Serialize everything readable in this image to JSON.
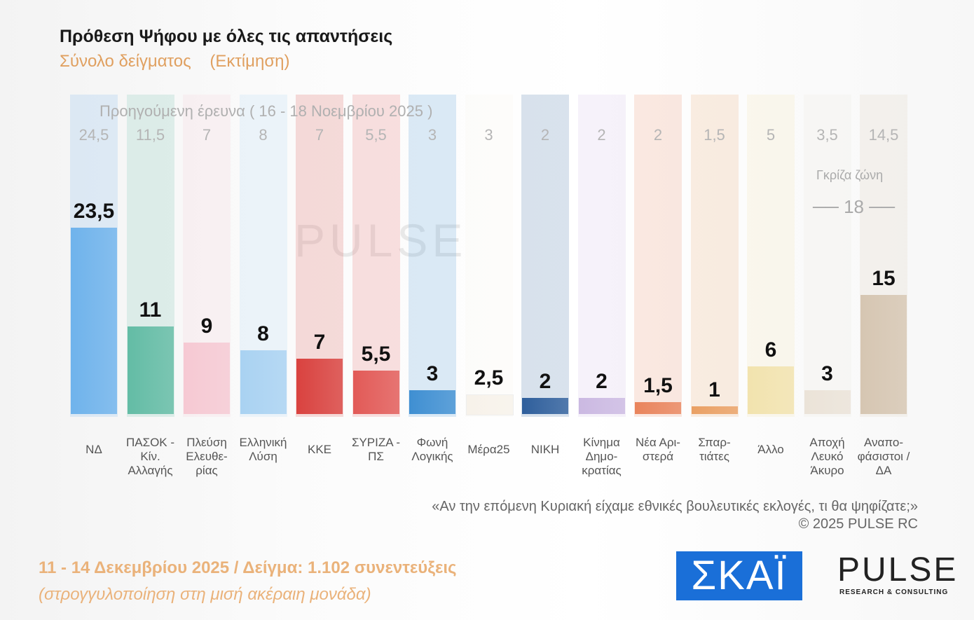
{
  "title": "Πρόθεση Ψήφου με όλες τις απαντήσεις",
  "subtitle": "Σύνολο δείγματος    (Εκτίμηση)",
  "watermark": "PULSE",
  "chart_data": {
    "type": "bar",
    "title": "Πρόθεση Ψήφου με όλες τις απαντήσεις",
    "subtitle": "Σύνολο δείγματος    (Εκτίμηση)",
    "categories": [
      "ΝΔ",
      "ΠΑΣΟΚ - Κίν. Αλλαγής",
      "Πλεύση Ελευθε- ρίας",
      "Ελληνική Λύση",
      "ΚΚΕ",
      "ΣΥΡΙΖΑ - ΠΣ",
      "Φωνή Λογικής",
      "Μέρα25",
      "ΝΙΚΗ",
      "Κίνημα Δημο- κρατίας",
      "Νέα Αρι- στερά",
      "Σπαρ- τιάτες",
      "Άλλο",
      "Αποχή Λευκό Άκυρο",
      "Αναπο- φάσιστοι / ΔΑ"
    ],
    "values": [
      23.5,
      11,
      9,
      8,
      7,
      5.5,
      3,
      2.5,
      2,
      2,
      1.5,
      1,
      6,
      3,
      15
    ],
    "value_labels": [
      "23,5",
      "11",
      "9",
      "8",
      "7",
      "5,5",
      "3",
      "2,5",
      "2",
      "2",
      "1,5",
      "1",
      "6",
      "3",
      "15"
    ],
    "previous_title": "Προηγούμενη έρευνα ( 16 - 18 Νοεμβρίου 2025 )",
    "previous_labels": [
      "24,5",
      "11,5",
      "7",
      "8",
      "7",
      "5,5",
      "3",
      "3",
      "2",
      "2",
      "2",
      "1,5",
      "5",
      "3,5",
      "14,5"
    ],
    "colors": [
      "#6fb3ec",
      "#63bca5",
      "#f6c9d3",
      "#a9d2f2",
      "#d9423f",
      "#e25a57",
      "#3f8fd2",
      "#f7f2ea",
      "#2f5f9c",
      "#cbb9e2",
      "#e9845c",
      "#eaa064",
      "#f2e3ae",
      "#ebe3d8",
      "#d6c6b2"
    ],
    "ylim": [
      0,
      25
    ],
    "grid": false,
    "legend": "none",
    "grey_zone_label": "Γκρίζα ζώνη",
    "grey_zone_value": "18"
  },
  "question": "«Αν την επόμενη Κυριακή είχαμε εθνικές βουλευτικές εκλογές, τι θα ψηφίζατε;»",
  "copyright": "©  2025  PULSE RC",
  "footer": {
    "dates": "11 - 14 Δεκεμβρίου 2025  /  Δείγμα:  1.102 συνεντεύξεις",
    "note": "(στρογγυλοποίηση στη μισή ακέραιη μονάδα)"
  },
  "logos": {
    "skai": "ΣΚΑΪ",
    "pulse": "PULSE",
    "pulse_sub": "RESEARCH & CONSULTING"
  }
}
